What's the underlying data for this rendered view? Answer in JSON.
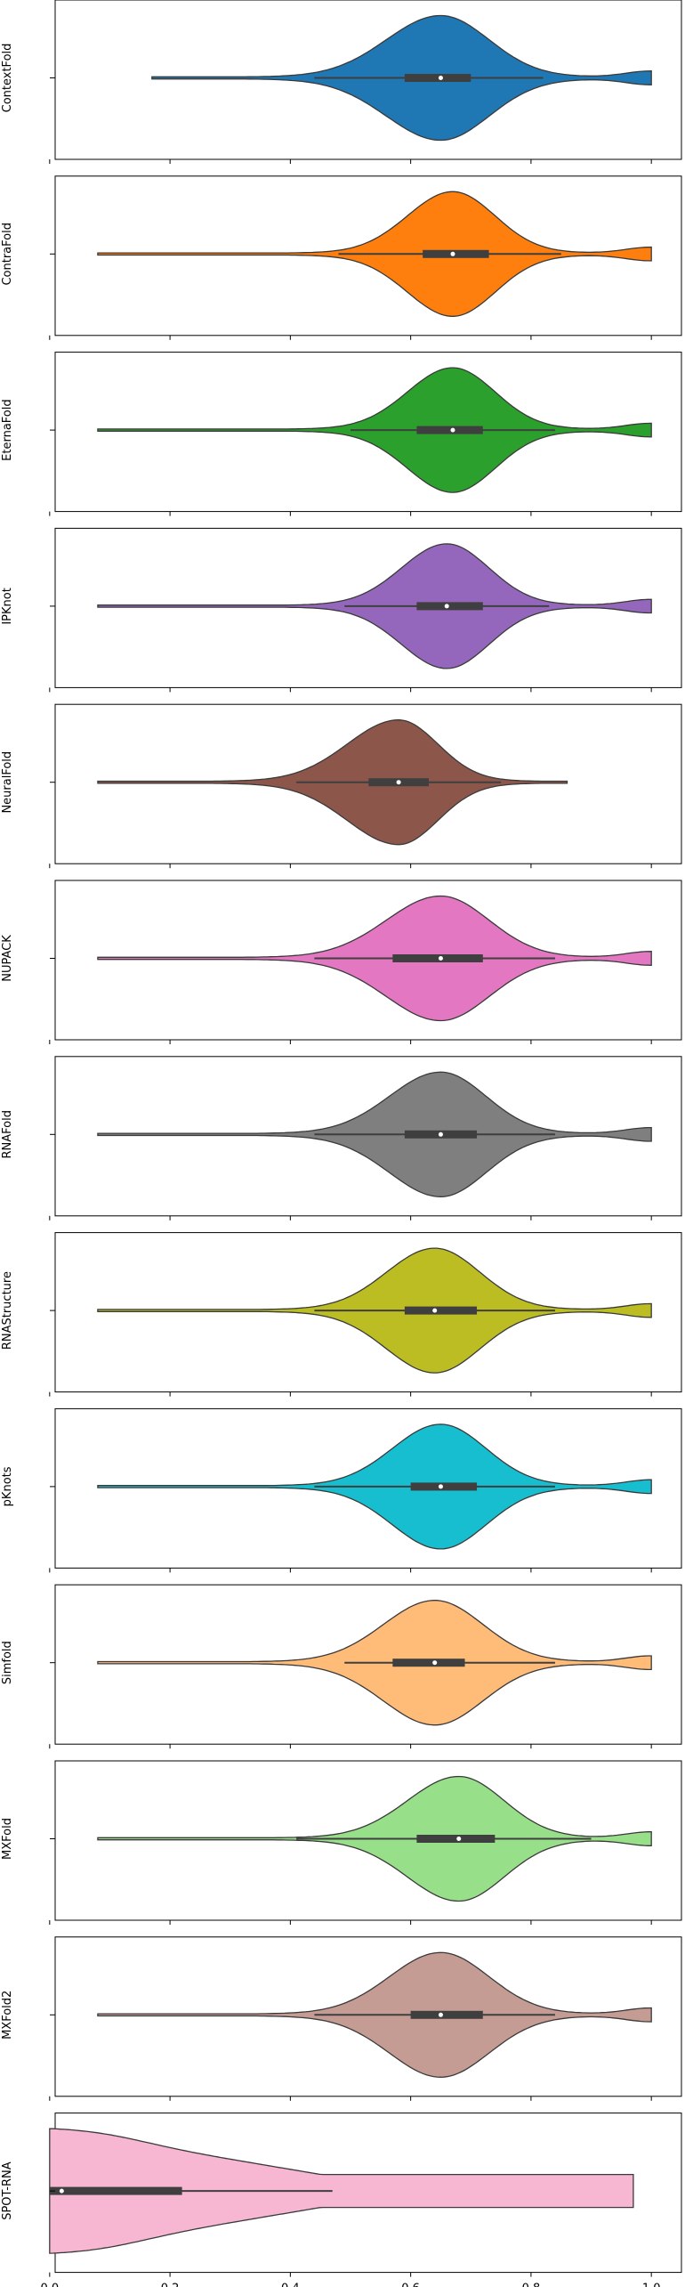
{
  "chart_data": {
    "type": "violin",
    "xlim": [
      -0.05,
      1.05
    ],
    "x_ticks": [
      "0.0",
      "0.2",
      "0.4",
      "0.6",
      "0.8",
      "1.0"
    ],
    "x_tick_values": [
      0.0,
      0.2,
      0.4,
      0.6,
      0.8,
      1.0
    ],
    "grid": false,
    "panels": [
      {
        "name": "ContextFold",
        "color": "#1f77b4",
        "min": 0.17,
        "max": 1.0,
        "mode": 0.65,
        "spread_left": 0.09,
        "spread_right": 0.08,
        "whisker": [
          0.44,
          0.82
        ],
        "q1": 0.59,
        "median": 0.65,
        "q3": 0.7
      },
      {
        "name": "ContraFold",
        "color": "#ff7f0e",
        "min": 0.08,
        "max": 1.0,
        "mode": 0.67,
        "spread_left": 0.075,
        "spread_right": 0.07,
        "whisker": [
          0.48,
          0.85
        ],
        "q1": 0.62,
        "median": 0.67,
        "q3": 0.73
      },
      {
        "name": "EternaFold",
        "color": "#2ca02c",
        "min": 0.08,
        "max": 1.0,
        "mode": 0.67,
        "spread_left": 0.075,
        "spread_right": 0.07,
        "whisker": [
          0.5,
          0.84
        ],
        "q1": 0.61,
        "median": 0.67,
        "q3": 0.72
      },
      {
        "name": "IPKnot",
        "color": "#9467bd",
        "min": 0.08,
        "max": 1.0,
        "mode": 0.66,
        "spread_left": 0.075,
        "spread_right": 0.07,
        "whisker": [
          0.49,
          0.83
        ],
        "q1": 0.61,
        "median": 0.66,
        "q3": 0.72
      },
      {
        "name": "NeuralFold",
        "color": "#8c564b",
        "min": 0.08,
        "max": 0.86,
        "mode": 0.58,
        "spread_left": 0.085,
        "spread_right": 0.065,
        "whisker": [
          0.41,
          0.75
        ],
        "q1": 0.53,
        "median": 0.58,
        "q3": 0.63
      },
      {
        "name": "NUPACK",
        "color": "#e377c2",
        "min": 0.08,
        "max": 1.0,
        "mode": 0.65,
        "spread_left": 0.09,
        "spread_right": 0.08,
        "whisker": [
          0.44,
          0.84
        ],
        "q1": 0.57,
        "median": 0.65,
        "q3": 0.72
      },
      {
        "name": "RNAFold",
        "color": "#7f7f7f",
        "min": 0.08,
        "max": 1.0,
        "mode": 0.65,
        "spread_left": 0.085,
        "spread_right": 0.075,
        "whisker": [
          0.44,
          0.84
        ],
        "q1": 0.59,
        "median": 0.65,
        "q3": 0.71
      },
      {
        "name": "RNAStructure",
        "color": "#bcbd22",
        "min": 0.08,
        "max": 1.0,
        "mode": 0.64,
        "spread_left": 0.08,
        "spread_right": 0.075,
        "whisker": [
          0.44,
          0.84
        ],
        "q1": 0.59,
        "median": 0.64,
        "q3": 0.71
      },
      {
        "name": "pKnots",
        "color": "#17becf",
        "min": 0.08,
        "max": 1.0,
        "mode": 0.65,
        "spread_left": 0.08,
        "spread_right": 0.075,
        "whisker": [
          0.44,
          0.84
        ],
        "q1": 0.6,
        "median": 0.65,
        "q3": 0.71
      },
      {
        "name": "Simfold",
        "color": "#ffbb78",
        "min": 0.08,
        "max": 1.0,
        "mode": 0.64,
        "spread_left": 0.085,
        "spread_right": 0.08,
        "whisker": [
          0.49,
          0.84
        ],
        "q1": 0.57,
        "median": 0.64,
        "q3": 0.69
      },
      {
        "name": "MXFold",
        "color": "#98df8a",
        "min": 0.08,
        "max": 1.0,
        "mode": 0.68,
        "spread_left": 0.085,
        "spread_right": 0.075,
        "whisker": [
          0.41,
          0.9
        ],
        "q1": 0.61,
        "median": 0.68,
        "q3": 0.74
      },
      {
        "name": "MXFold2",
        "color": "#c49c94",
        "min": 0.08,
        "max": 1.0,
        "mode": 0.65,
        "spread_left": 0.085,
        "spread_right": 0.08,
        "whisker": [
          0.44,
          0.84
        ],
        "q1": 0.6,
        "median": 0.65,
        "q3": 0.72
      },
      {
        "name": "SPOT-RNA",
        "color": "#f7b6d2",
        "min": 0.0,
        "max": 0.97,
        "mode": 0.02,
        "spread_left": 0.0,
        "spread_right": 0.0,
        "whisker": [
          0.0,
          0.47
        ],
        "q1": 0.0,
        "median": 0.02,
        "q3": 0.22
      }
    ]
  }
}
